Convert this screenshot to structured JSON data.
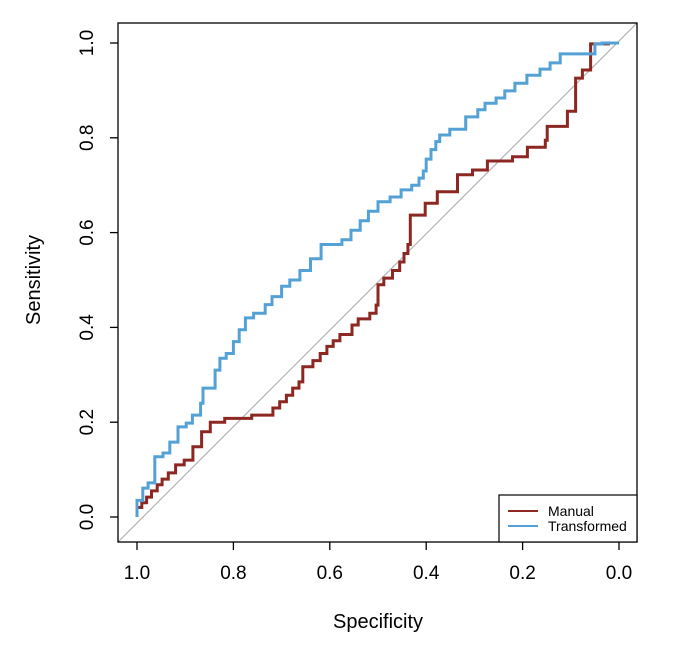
{
  "chart_data": {
    "type": "line",
    "subtype": "roc-step-curves",
    "title": "",
    "xlabel": "Specificity",
    "ylabel": "Sensitivity",
    "x_axis": {
      "ticks": [
        1.0,
        0.8,
        0.6,
        0.4,
        0.2,
        0.0
      ],
      "tick_labels": [
        "1.0",
        "0.8",
        "0.6",
        "0.4",
        "0.2",
        "0.0"
      ],
      "reversed": true,
      "range": [
        1.0,
        0.0
      ]
    },
    "y_axis": {
      "ticks": [
        0.0,
        0.2,
        0.4,
        0.6,
        0.8,
        1.0
      ],
      "tick_labels": [
        "0.0",
        "0.2",
        "0.4",
        "0.6",
        "0.8",
        "1.0"
      ],
      "range": [
        0.0,
        1.0
      ]
    },
    "grid": false,
    "background_color": "#ffffff",
    "reference_line": {
      "label": "chance-diagonal",
      "from_spec_sens": [
        1.0,
        0.0
      ],
      "to_spec_sens": [
        0.0,
        1.0
      ],
      "color": "#b3b3b3"
    },
    "legend": {
      "position": "bottomright",
      "border_color": "#000000"
    },
    "series": [
      {
        "name": "Manual",
        "color": "#8c2721",
        "points_spec_sens": [
          [
            1.0,
            0.0
          ],
          [
            1.0,
            0.02
          ],
          [
            0.99,
            0.03
          ],
          [
            0.98,
            0.042
          ],
          [
            0.97,
            0.055
          ],
          [
            0.958,
            0.068
          ],
          [
            0.948,
            0.08
          ],
          [
            0.935,
            0.093
          ],
          [
            0.92,
            0.11
          ],
          [
            0.902,
            0.12
          ],
          [
            0.884,
            0.148
          ],
          [
            0.866,
            0.18
          ],
          [
            0.848,
            0.2
          ],
          [
            0.818,
            0.208
          ],
          [
            0.762,
            0.215
          ],
          [
            0.718,
            0.23
          ],
          [
            0.704,
            0.243
          ],
          [
            0.69,
            0.257
          ],
          [
            0.677,
            0.272
          ],
          [
            0.664,
            0.285
          ],
          [
            0.656,
            0.317
          ],
          [
            0.635,
            0.33
          ],
          [
            0.62,
            0.345
          ],
          [
            0.606,
            0.36
          ],
          [
            0.593,
            0.372
          ],
          [
            0.579,
            0.385
          ],
          [
            0.554,
            0.405
          ],
          [
            0.541,
            0.418
          ],
          [
            0.517,
            0.43
          ],
          [
            0.504,
            0.447
          ],
          [
            0.5,
            0.49
          ],
          [
            0.488,
            0.504
          ],
          [
            0.47,
            0.52
          ],
          [
            0.455,
            0.538
          ],
          [
            0.446,
            0.556
          ],
          [
            0.438,
            0.575
          ],
          [
            0.433,
            0.637
          ],
          [
            0.402,
            0.662
          ],
          [
            0.377,
            0.686
          ],
          [
            0.335,
            0.722
          ],
          [
            0.304,
            0.732
          ],
          [
            0.273,
            0.751
          ],
          [
            0.221,
            0.76
          ],
          [
            0.19,
            0.78
          ],
          [
            0.153,
            0.795
          ],
          [
            0.149,
            0.824
          ],
          [
            0.107,
            0.856
          ],
          [
            0.09,
            0.926
          ],
          [
            0.076,
            0.943
          ],
          [
            0.059,
            0.998
          ],
          [
            0.022,
            1.0
          ],
          [
            0.0,
            1.0
          ]
        ]
      },
      {
        "name": "Transformed",
        "color": "#54a1d5",
        "points_spec_sens": [
          [
            1.0,
            0.0
          ],
          [
            1.0,
            0.035
          ],
          [
            0.988,
            0.061
          ],
          [
            0.977,
            0.072
          ],
          [
            0.963,
            0.127
          ],
          [
            0.946,
            0.135
          ],
          [
            0.932,
            0.158
          ],
          [
            0.915,
            0.19
          ],
          [
            0.898,
            0.198
          ],
          [
            0.885,
            0.215
          ],
          [
            0.868,
            0.24
          ],
          [
            0.863,
            0.272
          ],
          [
            0.838,
            0.31
          ],
          [
            0.828,
            0.335
          ],
          [
            0.815,
            0.345
          ],
          [
            0.8,
            0.37
          ],
          [
            0.788,
            0.395
          ],
          [
            0.775,
            0.42
          ],
          [
            0.758,
            0.43
          ],
          [
            0.734,
            0.448
          ],
          [
            0.72,
            0.465
          ],
          [
            0.7,
            0.487
          ],
          [
            0.683,
            0.5
          ],
          [
            0.662,
            0.52
          ],
          [
            0.64,
            0.545
          ],
          [
            0.618,
            0.575
          ],
          [
            0.575,
            0.585
          ],
          [
            0.556,
            0.605
          ],
          [
            0.537,
            0.625
          ],
          [
            0.52,
            0.645
          ],
          [
            0.5,
            0.665
          ],
          [
            0.475,
            0.675
          ],
          [
            0.452,
            0.69
          ],
          [
            0.43,
            0.7
          ],
          [
            0.415,
            0.715
          ],
          [
            0.406,
            0.73
          ],
          [
            0.4,
            0.755
          ],
          [
            0.39,
            0.775
          ],
          [
            0.38,
            0.792
          ],
          [
            0.372,
            0.806
          ],
          [
            0.351,
            0.818
          ],
          [
            0.318,
            0.844
          ],
          [
            0.293,
            0.859
          ],
          [
            0.278,
            0.873
          ],
          [
            0.255,
            0.884
          ],
          [
            0.237,
            0.899
          ],
          [
            0.216,
            0.915
          ],
          [
            0.191,
            0.932
          ],
          [
            0.164,
            0.945
          ],
          [
            0.143,
            0.958
          ],
          [
            0.122,
            0.977
          ],
          [
            0.05,
            0.998
          ],
          [
            0.035,
            1.0
          ],
          [
            0.0,
            1.0
          ]
        ]
      }
    ]
  }
}
